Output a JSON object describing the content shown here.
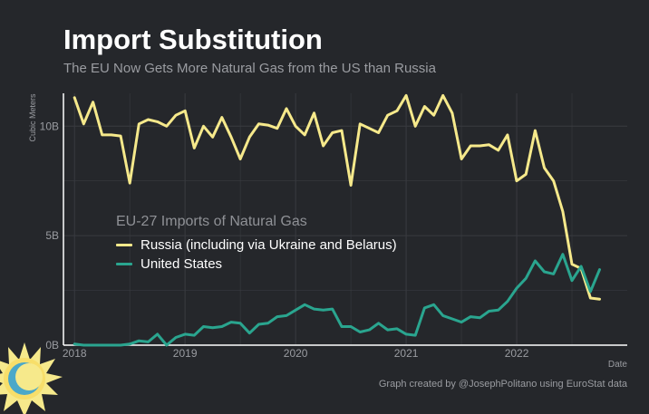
{
  "title": "Import Substitution",
  "subtitle": "The EU Now Gets More Natural Gas from the US than Russia",
  "caption": "Graph created by @JosephPolitano using EuroStat data",
  "colors": {
    "background": "#25272b",
    "russia": "#f6e98b",
    "us": "#2aa58f",
    "grid": "#393b40",
    "axis": "#ffffff",
    "muted": "#9a9ca1"
  },
  "logo_icon": "sun-icon",
  "chart_data": {
    "type": "line",
    "title": "Import Substitution",
    "xlabel": "Date",
    "ylabel": "Cubic Meters",
    "xlim": [
      2017.9,
      2023.0
    ],
    "ylim": [
      0,
      11.5
    ],
    "yticks": [
      {
        "v": 0,
        "label": "0B"
      },
      {
        "v": 5,
        "label": "5B"
      },
      {
        "v": 10,
        "label": "10B"
      }
    ],
    "xticks": [
      {
        "v": 2018,
        "label": "2018"
      },
      {
        "v": 2019,
        "label": "2019"
      },
      {
        "v": 2020,
        "label": "2020"
      },
      {
        "v": 2021,
        "label": "2021"
      },
      {
        "v": 2022,
        "label": "2022"
      }
    ],
    "grid": true,
    "legend": {
      "title": "EU-27 Imports of Natural Gas",
      "position": "center-left"
    },
    "series": [
      {
        "name": "Russia (including via Ukraine and Belarus)",
        "color": "#f6e98b",
        "x": [
          2018.0,
          2018.083,
          2018.167,
          2018.25,
          2018.333,
          2018.417,
          2018.5,
          2018.583,
          2018.667,
          2018.75,
          2018.833,
          2018.917,
          2019.0,
          2019.083,
          2019.167,
          2019.25,
          2019.333,
          2019.417,
          2019.5,
          2019.583,
          2019.667,
          2019.75,
          2019.833,
          2019.917,
          2020.0,
          2020.083,
          2020.167,
          2020.25,
          2020.333,
          2020.417,
          2020.5,
          2020.583,
          2020.667,
          2020.75,
          2020.833,
          2020.917,
          2021.0,
          2021.083,
          2021.167,
          2021.25,
          2021.333,
          2021.417,
          2021.5,
          2021.583,
          2021.667,
          2021.75,
          2021.833,
          2021.917,
          2022.0,
          2022.083,
          2022.167,
          2022.25,
          2022.333,
          2022.417,
          2022.5,
          2022.583,
          2022.667,
          2022.75
        ],
        "values": [
          11.3,
          10.1,
          11.1,
          9.6,
          9.6,
          9.55,
          7.4,
          10.1,
          10.3,
          10.2,
          10.0,
          10.5,
          10.7,
          9.0,
          10.0,
          9.5,
          10.4,
          9.5,
          8.5,
          9.5,
          10.1,
          10.05,
          9.9,
          10.8,
          10.0,
          9.6,
          10.6,
          9.1,
          9.7,
          9.8,
          7.3,
          10.1,
          9.9,
          9.7,
          10.5,
          10.7,
          11.4,
          10.0,
          10.9,
          10.5,
          11.4,
          10.6,
          8.5,
          9.1,
          9.1,
          9.15,
          8.9,
          9.6,
          7.5,
          7.8,
          9.8,
          8.1,
          7.5,
          6.1,
          3.7,
          3.5,
          2.15,
          2.1
        ]
      },
      {
        "name": "United States",
        "color": "#2aa58f",
        "x": [
          2018.0,
          2018.083,
          2018.167,
          2018.25,
          2018.333,
          2018.417,
          2018.5,
          2018.583,
          2018.667,
          2018.75,
          2018.833,
          2018.917,
          2019.0,
          2019.083,
          2019.167,
          2019.25,
          2019.333,
          2019.417,
          2019.5,
          2019.583,
          2019.667,
          2019.75,
          2019.833,
          2019.917,
          2020.0,
          2020.083,
          2020.167,
          2020.25,
          2020.333,
          2020.417,
          2020.5,
          2020.583,
          2020.667,
          2020.75,
          2020.833,
          2020.917,
          2021.0,
          2021.083,
          2021.167,
          2021.25,
          2021.333,
          2021.417,
          2021.5,
          2021.583,
          2021.667,
          2021.75,
          2021.833,
          2021.917,
          2022.0,
          2022.083,
          2022.167,
          2022.25,
          2022.333,
          2022.417,
          2022.5,
          2022.583,
          2022.667,
          2022.75
        ],
        "values": [
          0.05,
          0.0,
          0.0,
          0.0,
          0.0,
          0.0,
          0.05,
          0.2,
          0.15,
          0.5,
          0.0,
          0.35,
          0.5,
          0.45,
          0.85,
          0.8,
          0.85,
          1.05,
          1.0,
          0.55,
          0.95,
          1.0,
          1.3,
          1.35,
          1.6,
          1.85,
          1.65,
          1.6,
          1.65,
          0.85,
          0.85,
          0.6,
          0.7,
          1.0,
          0.7,
          0.75,
          0.5,
          0.45,
          1.7,
          1.85,
          1.35,
          1.2,
          1.05,
          1.3,
          1.25,
          1.55,
          1.6,
          2.0,
          2.6,
          3.05,
          3.85,
          3.35,
          3.25,
          4.15,
          2.95,
          3.6,
          2.45,
          3.45
        ]
      }
    ]
  }
}
